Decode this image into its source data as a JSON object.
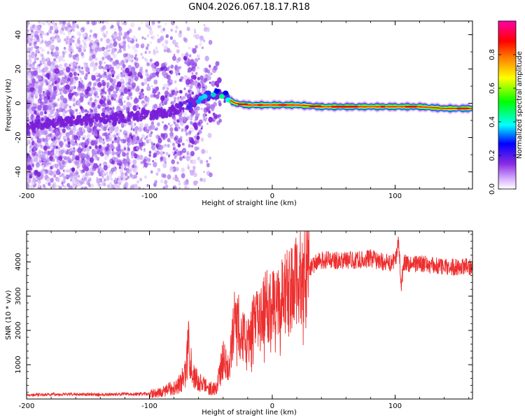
{
  "figure_title": "GN04.2026.067.18.17.R18",
  "chart_data": [
    {
      "type": "heatmap",
      "title": "GN04.2026.067.18.17.R18",
      "xlabel": "Height of straight line (km)",
      "ylabel": "Frequency (Hz)",
      "xlim": [
        -200,
        163
      ],
      "ylim": [
        -50,
        48
      ],
      "xticks": [
        -200,
        -100,
        0,
        100
      ],
      "xtick_labels": [
        "-200",
        "-100",
        "0",
        "100"
      ],
      "yticks": [
        -40,
        -20,
        0,
        20,
        40
      ],
      "ytick_labels": [
        "-40",
        "-20",
        "0",
        "20",
        "40"
      ],
      "ridge": {
        "x": [
          -200,
          -180,
          -160,
          -140,
          -120,
          -100,
          -90,
          -80,
          -70,
          -60,
          -50,
          -45,
          -40,
          -35,
          -30,
          -20,
          -10,
          0,
          20,
          40,
          60,
          80,
          100,
          120,
          140,
          163
        ],
        "freq": [
          -13,
          -11,
          -10,
          -9,
          -8,
          -7,
          -6,
          -4,
          -1,
          2,
          5,
          6,
          4,
          2,
          0,
          -1,
          -1,
          -1,
          -1,
          -2,
          -2,
          -2,
          -2,
          -2,
          -3,
          -3
        ]
      },
      "colorbar": {
        "label": "Normalized spectral amplitude",
        "range": [
          0,
          1
        ],
        "ticks": [
          0.0,
          0.2,
          0.4,
          0.6,
          0.8
        ],
        "tick_labels": [
          "0.0",
          "0.2",
          "0.4",
          "0.6",
          "0.8"
        ],
        "colormap": [
          "#ffffff",
          "#8a2be2",
          "#0000ff",
          "#00ffff",
          "#00ff00",
          "#ffff00",
          "#ff8000",
          "#ff0000",
          "#ff00aa"
        ]
      }
    },
    {
      "type": "line",
      "title": "",
      "xlabel": "Height of straight line (km)",
      "ylabel": "SNR (10 * v/v)",
      "xlim": [
        -200,
        163
      ],
      "ylim": [
        0,
        4900
      ],
      "xticks": [
        -200,
        -100,
        0,
        100
      ],
      "xtick_labels": [
        "-200",
        "-100",
        "0",
        "100"
      ],
      "yticks": [
        1000,
        2000,
        3000,
        4000
      ],
      "ytick_labels": [
        "1000",
        "2000",
        "3000",
        "4000"
      ],
      "series": [
        {
          "name": "SNR",
          "color": "#ee2e2e",
          "x": [
            -200,
            -180,
            -160,
            -140,
            -120,
            -100,
            -90,
            -80,
            -75,
            -70,
            -68,
            -65,
            -60,
            -55,
            -50,
            -45,
            -40,
            -35,
            -30,
            -25,
            -20,
            -15,
            -10,
            -5,
            0,
            5,
            10,
            15,
            20,
            25,
            30,
            35,
            40,
            50,
            60,
            70,
            80,
            90,
            95,
            100,
            103,
            105,
            107,
            110,
            120,
            130,
            140,
            150,
            163
          ],
          "values": [
            120,
            130,
            140,
            130,
            140,
            150,
            200,
            350,
            450,
            800,
            1800,
            700,
            500,
            400,
            300,
            350,
            1200,
            900,
            2500,
            1900,
            1700,
            2200,
            2300,
            2700,
            2800,
            2950,
            3100,
            3200,
            3400,
            3600,
            3800,
            3950,
            4050,
            4050,
            4050,
            4050,
            4100,
            4000,
            3950,
            4000,
            4600,
            3300,
            4000,
            3950,
            3950,
            3900,
            3850,
            3850,
            3850
          ]
        }
      ]
    }
  ]
}
